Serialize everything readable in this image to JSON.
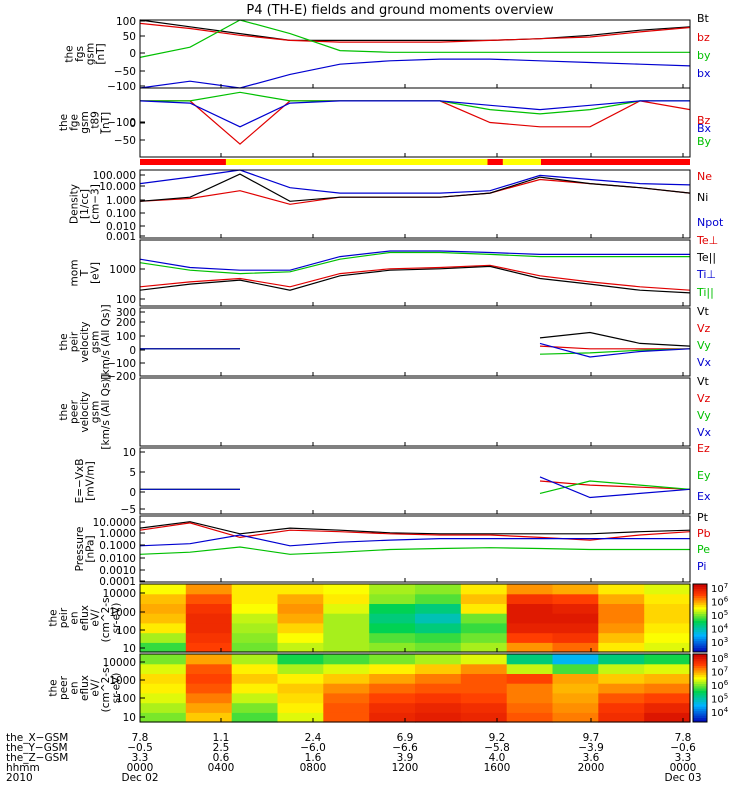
{
  "title": "P4 (TH-E) fields and ground moments overview",
  "chart_data": [
    {
      "type": "line",
      "panel": 1,
      "ylabel": [
        "the",
        "fgs",
        "gsm",
        "[nT]"
      ],
      "yscale": "linear",
      "ylim": [
        -100,
        100
      ],
      "yticks": [
        "100",
        "50",
        "0",
        "−50",
        "−100"
      ],
      "legend": [
        {
          "name": "Bt",
          "color": "#000000"
        },
        {
          "name": "bz",
          "color": "#e00000"
        },
        {
          "name": "by",
          "color": "#00c000"
        },
        {
          "name": "bx",
          "color": "#0000d0"
        }
      ],
      "series": [
        {
          "name": "Bt",
          "values": [
            100,
            80,
            60,
            40,
            40,
            40,
            40,
            40,
            45,
            55,
            70,
            80
          ]
        },
        {
          "name": "bz",
          "values": [
            90,
            75,
            55,
            40,
            35,
            35,
            35,
            40,
            45,
            50,
            65,
            78
          ]
        },
        {
          "name": "by",
          "values": [
            -10,
            20,
            100,
            60,
            10,
            5,
            5,
            5,
            5,
            5,
            5,
            5
          ]
        },
        {
          "name": "bx",
          "values": [
            -100,
            -80,
            -100,
            -60,
            -30,
            -20,
            -15,
            -15,
            -20,
            -25,
            -30,
            -35
          ]
        }
      ]
    },
    {
      "type": "line",
      "panel": 2,
      "ylabel": [
        "the",
        "fge",
        "gsm",
        "_t89",
        "[nT]"
      ],
      "yscale": "linear",
      "ylim": [
        -130,
        30
      ],
      "yticks": [
        "0",
        "−50",
        "−100"
      ],
      "legend": [
        {
          "name": "Bz",
          "color": "#e00000"
        },
        {
          "name": "By",
          "color": "#00c000"
        },
        {
          "name": "Bx",
          "color": "#0000d0"
        }
      ],
      "series": [
        {
          "name": "Bz",
          "values": [
            0,
            0,
            -100,
            0,
            0,
            0,
            0,
            -50,
            -60,
            -60,
            0,
            -20
          ]
        },
        {
          "name": "By",
          "values": [
            0,
            0,
            20,
            0,
            0,
            0,
            0,
            -20,
            -30,
            -20,
            0,
            0
          ]
        },
        {
          "name": "Bx",
          "values": [
            0,
            -5,
            -60,
            -5,
            0,
            0,
            0,
            -10,
            -20,
            -10,
            0,
            0
          ]
        }
      ]
    },
    {
      "type": "line",
      "panel": 3,
      "ylabel": [
        "Density",
        "[1/cc]",
        "[cm−3]"
      ],
      "yscale": "log",
      "ylim": [
        0.001,
        100
      ],
      "yticks": [
        "100.000",
        "10.000",
        "1.000",
        "0.100",
        "0.010",
        "0.001"
      ],
      "legend": [
        {
          "name": "Ne",
          "color": "#e00000"
        },
        {
          "name": "Ni",
          "color": "#000000"
        },
        {
          "name": "Npot",
          "color": "#0000d0"
        }
      ],
      "series": [
        {
          "name": "Ne",
          "values": [
            0.5,
            0.8,
            3,
            0.3,
            1,
            1,
            1,
            2,
            20,
            10,
            5,
            2
          ]
        },
        {
          "name": "Ni",
          "values": [
            0.5,
            1,
            50,
            0.5,
            1,
            1,
            1,
            2,
            30,
            10,
            5,
            2
          ]
        },
        {
          "name": "Npot",
          "values": [
            10,
            30,
            100,
            5,
            2,
            2,
            2,
            3,
            40,
            20,
            10,
            8
          ]
        }
      ]
    },
    {
      "type": "line",
      "panel": 4,
      "ylabel": [
        "mom",
        "T",
        "[eV]"
      ],
      "yscale": "log",
      "ylim": [
        40,
        10000
      ],
      "yticks": [
        "1000",
        "100"
      ],
      "legend": [
        {
          "name": "Te⊥",
          "color": "#e00000"
        },
        {
          "name": "Te||",
          "color": "#000000"
        },
        {
          "name": "Ti⊥",
          "color": "#0000d0"
        },
        {
          "name": "Ti||",
          "color": "#00c000"
        }
      ],
      "series": [
        {
          "name": "Te⊥",
          "values": [
            200,
            300,
            400,
            200,
            600,
            900,
            1000,
            1200,
            500,
            300,
            200,
            150
          ]
        },
        {
          "name": "Te||",
          "values": [
            150,
            250,
            350,
            150,
            500,
            800,
            900,
            1100,
            400,
            250,
            150,
            120
          ]
        },
        {
          "name": "Ti⊥",
          "values": [
            2000,
            1000,
            800,
            800,
            2500,
            4000,
            4000,
            3500,
            3000,
            3000,
            3000,
            3000
          ]
        },
        {
          "name": "Ti||",
          "values": [
            1500,
            800,
            600,
            700,
            2000,
            3500,
            3500,
            3000,
            2500,
            2500,
            2500,
            2500
          ]
        }
      ]
    },
    {
      "type": "line",
      "panel": 5,
      "ylabel": [
        "the",
        "peir",
        "velocity",
        "gsm",
        "[km/s (All Qs)]"
      ],
      "yscale": "linear",
      "ylim": [
        -200,
        300
      ],
      "yticks": [
        "300",
        "200",
        "100",
        "0",
        "−100",
        "−200"
      ],
      "legend": [
        {
          "name": "Vt",
          "color": "#000000"
        },
        {
          "name": "Vz",
          "color": "#e00000"
        },
        {
          "name": "Vy",
          "color": "#00c000"
        },
        {
          "name": "Vx",
          "color": "#0000d0"
        }
      ],
      "series": [
        {
          "name": "Vt",
          "values": [
            0,
            0,
            0,
            null,
            null,
            null,
            null,
            null,
            80,
            120,
            40,
            20
          ]
        },
        {
          "name": "Vz",
          "values": [
            0,
            0,
            0,
            null,
            null,
            null,
            null,
            null,
            20,
            0,
            0,
            0
          ]
        },
        {
          "name": "Vy",
          "values": [
            0,
            0,
            0,
            null,
            null,
            null,
            null,
            null,
            -40,
            -30,
            -10,
            0
          ]
        },
        {
          "name": "Vx",
          "values": [
            0,
            0,
            0,
            null,
            null,
            null,
            null,
            null,
            40,
            -60,
            -20,
            0
          ]
        }
      ]
    },
    {
      "type": "line",
      "panel": 6,
      "ylabel": [
        "the",
        "peer",
        "velocity",
        "gsm",
        "[km/s (All Qs)]"
      ],
      "yscale": "linear",
      "ylim": [
        -200,
        300
      ],
      "yticks": [],
      "legend": [
        {
          "name": "Vt",
          "color": "#000000"
        },
        {
          "name": "Vz",
          "color": "#e00000"
        },
        {
          "name": "Vy",
          "color": "#00c000"
        },
        {
          "name": "Vx",
          "color": "#0000d0"
        }
      ],
      "series": []
    },
    {
      "type": "line",
      "panel": 7,
      "ylabel": [
        "E=−VxB",
        "[mV/m]"
      ],
      "yscale": "linear",
      "ylim": [
        -6,
        10
      ],
      "yticks": [
        "10",
        "5",
        "0",
        "−5"
      ],
      "legend": [
        {
          "name": "Ez",
          "color": "#e00000"
        },
        {
          "name": "Ey",
          "color": "#00c000"
        },
        {
          "name": "Ex",
          "color": "#0000d0"
        }
      ],
      "series": [
        {
          "name": "Ez",
          "values": [
            0,
            0,
            0,
            null,
            null,
            null,
            null,
            null,
            2,
            1,
            0.5,
            0
          ]
        },
        {
          "name": "Ey",
          "values": [
            0,
            0,
            0,
            null,
            null,
            null,
            null,
            null,
            -1,
            2,
            1,
            0
          ]
        },
        {
          "name": "Ex",
          "values": [
            0,
            0,
            0,
            null,
            null,
            null,
            null,
            null,
            3,
            -2,
            -1,
            0
          ]
        }
      ]
    },
    {
      "type": "line",
      "panel": 8,
      "ylabel": [
        "Pressure",
        "[nPa]"
      ],
      "yscale": "log",
      "ylim": [
        0.0001,
        30
      ],
      "yticks": [
        "10.0000",
        "1.0000",
        "0.1000",
        "0.0100",
        "0.0010",
        "0.0001"
      ],
      "legend": [
        {
          "name": "Pt",
          "color": "#000000"
        },
        {
          "name": "Pb",
          "color": "#e00000"
        },
        {
          "name": "Pe",
          "color": "#00c000"
        },
        {
          "name": "Pi",
          "color": "#0000d0"
        }
      ],
      "series": [
        {
          "name": "Pt",
          "values": [
            3,
            10,
            1,
            3,
            2,
            1.2,
            1,
            1,
            1,
            1,
            1.5,
            2
          ]
        },
        {
          "name": "Pb",
          "values": [
            2,
            8,
            0.5,
            2,
            1.5,
            1,
            0.8,
            0.8,
            0.5,
            0.3,
            0.8,
            1.5
          ]
        },
        {
          "name": "Pe",
          "values": [
            0.02,
            0.03,
            0.08,
            0.02,
            0.03,
            0.05,
            0.06,
            0.07,
            0.06,
            0.05,
            0.05,
            0.05
          ]
        },
        {
          "name": "Pi",
          "values": [
            0.1,
            0.15,
            0.8,
            0.1,
            0.2,
            0.3,
            0.4,
            0.4,
            0.4,
            0.4,
            0.4,
            0.4
          ]
        }
      ]
    },
    {
      "type": "heatmap",
      "panel": 9,
      "ylabel": [
        "the",
        "peir",
        "en",
        "eflux",
        "eV/",
        "(cm^2-s-",
        "sr-eV)"
      ],
      "yscale": "log",
      "ylim": [
        8,
        20000
      ],
      "yticks": [
        "10000",
        "1000",
        "100",
        "10"
      ],
      "colorbar_ticks": [
        "10^7",
        "10^6",
        "10^5",
        "10^4",
        "10^3"
      ],
      "colorbar_range": [
        1000,
        30000000
      ],
      "energy_bins": [
        10,
        30,
        100,
        300,
        1000,
        3000,
        10000
      ],
      "rows": [
        [
          5.2,
          6.8,
          5.4,
          5.7,
          5.6,
          5.5,
          5.4,
          5.6,
          6.4,
          6.6,
          6.0,
          5.8
        ],
        [
          5.6,
          6.9,
          5.5,
          5.9,
          5.6,
          5.3,
          5.2,
          5.4,
          6.8,
          6.9,
          6.2,
          5.9
        ],
        [
          6.0,
          7.0,
          5.6,
          6.1,
          5.6,
          5.0,
          4.8,
          5.2,
          7.1,
          7.1,
          6.4,
          6.0
        ],
        [
          6.2,
          7.0,
          5.7,
          6.3,
          5.6,
          4.8,
          4.5,
          5.4,
          7.2,
          7.2,
          6.5,
          6.1
        ],
        [
          6.3,
          6.9,
          5.9,
          6.4,
          5.8,
          5.0,
          4.8,
          6.0,
          7.2,
          7.1,
          6.5,
          6.1
        ],
        [
          6.2,
          6.7,
          6.0,
          6.3,
          6.0,
          5.5,
          5.3,
          6.2,
          6.9,
          6.8,
          6.3,
          6.0
        ],
        [
          5.9,
          6.4,
          6.0,
          6.0,
          5.9,
          5.6,
          5.5,
          6.0,
          6.4,
          6.3,
          6.0,
          5.8
        ]
      ]
    },
    {
      "type": "heatmap",
      "panel": 10,
      "ylabel": [
        "the",
        "peer",
        "en",
        "eflux",
        "eV/",
        "(cm^2-s-",
        "sr-eV)"
      ],
      "yscale": "log",
      "ylim": [
        8,
        20000
      ],
      "yticks": [
        "10000",
        "1000",
        "100",
        "10"
      ],
      "colorbar_ticks": [
        "10^8",
        "10^7",
        "10^6",
        "10^5",
        "10^4"
      ],
      "colorbar_range": [
        3000,
        300000000
      ],
      "energy_bins": [
        10,
        30,
        100,
        300,
        1000,
        3000,
        10000
      ],
      "rows": [
        [
          6.2,
          7.0,
          6.0,
          6.6,
          7.6,
          8.0,
          8.1,
          8.0,
          7.6,
          7.4,
          7.9,
          8.2
        ],
        [
          6.4,
          7.2,
          6.2,
          6.8,
          7.6,
          7.9,
          8.0,
          7.9,
          7.5,
          7.3,
          7.8,
          8.0
        ],
        [
          6.6,
          7.4,
          6.5,
          6.9,
          7.5,
          7.7,
          7.8,
          7.7,
          7.4,
          7.2,
          7.6,
          7.7
        ],
        [
          6.8,
          7.6,
          6.8,
          7.0,
          7.3,
          7.5,
          7.6,
          7.6,
          7.4,
          7.1,
          7.3,
          7.4
        ],
        [
          6.9,
          7.7,
          7.0,
          6.8,
          7.0,
          7.2,
          7.4,
          7.6,
          7.7,
          7.2,
          7.0,
          7.1
        ],
        [
          6.6,
          7.6,
          6.8,
          6.4,
          6.6,
          6.8,
          7.0,
          7.3,
          6.5,
          6.0,
          6.5,
          6.6
        ],
        [
          6.2,
          7.2,
          6.4,
          5.8,
          6.0,
          6.2,
          6.4,
          6.6,
          5.5,
          4.8,
          5.5,
          5.8
        ]
      ]
    }
  ],
  "x_axis": {
    "tick_labels": [
      "0000",
      "0400",
      "0800",
      "1200",
      "1600",
      "2000",
      "0000"
    ],
    "row_labels": [
      "the_X−GSM",
      "the_Y−GSM",
      "the_Z−GSM",
      "hhmm",
      "2010"
    ],
    "X_GSM": [
      "7.8",
      "1.1",
      "2.4",
      "6.9",
      "9.2",
      "9.7",
      "7.8"
    ],
    "Y_GSM": [
      "−0.5",
      "2.5",
      "−6.0",
      "−6.6",
      "−5.8",
      "−3.9",
      "−0.6"
    ],
    "Z_GSM": [
      "3.3",
      "0.6",
      "1.6",
      "3.9",
      "4.0",
      "3.6",
      "3.3"
    ],
    "hhmm": [
      "0000",
      "0400",
      "0800",
      "1200",
      "1600",
      "2000",
      "0000"
    ],
    "dates": {
      "start": "Dec 02",
      "end": "Dec 03"
    }
  },
  "mode_bar": [
    {
      "from": "0000",
      "to": "0345",
      "color": "#ff0000"
    },
    {
      "from": "0345",
      "to": "1510",
      "color": "#ffff00"
    },
    {
      "from": "1510",
      "to": "1550",
      "color": "#ff0000"
    },
    {
      "from": "1550",
      "to": "1730",
      "color": "#ffff00"
    },
    {
      "from": "1730",
      "to": "0000",
      "color": "#ff0000"
    }
  ],
  "colors": {
    "black": "#000000",
    "red": "#e00000",
    "green": "#00c000",
    "blue": "#0000d0",
    "mode_red": "#ff0000",
    "mode_yellow": "#ffff00"
  }
}
